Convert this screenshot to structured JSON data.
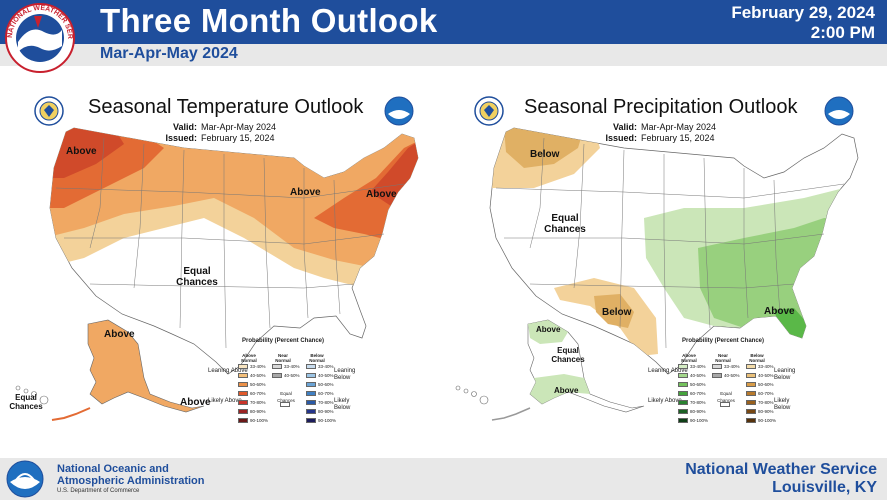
{
  "header": {
    "title": "Three Month Outlook",
    "date": "February 29, 2024",
    "time": "2:00 PM",
    "subtitle": "Mar-Apr-May 2024",
    "seal_text": "NATIONAL WEATHER SERVICE"
  },
  "temperature": {
    "title": "Seasonal Temperature Outlook",
    "valid_label": "Valid:",
    "valid_value": "Mar-Apr-May 2024",
    "issued_label": "Issued:",
    "issued_value": "February 15, 2024",
    "labels": {
      "above_nw": "Above",
      "above_greatlakes": "Above",
      "above_ne": "Above",
      "equal_chances": "Equal Chances",
      "above_alaska": "Above",
      "above_aleutians": "Above",
      "equal_chances_hawaii": "Equal Chances"
    }
  },
  "precipitation": {
    "title": "Seasonal Precipitation Outlook",
    "valid_label": "Valid:",
    "valid_value": "Mar-Apr-May 2024",
    "issued_label": "Issued:",
    "issued_value": "February 15, 2024",
    "labels": {
      "below_nw": "Below",
      "equal_chances_west": "Equal Chances",
      "below_south": "Below",
      "above_se": "Above",
      "above_alaska_n": "Above",
      "equal_chances_alaska": "Equal Chances",
      "above_alaska_s": "Above"
    }
  },
  "legend_temp": {
    "title": "Probability (Percent Chance)",
    "col_above": "Above Normal",
    "col_near": "Near Normal",
    "col_below": "Below Normal",
    "leaning_above": "Leaning Above",
    "likely_above": "Likely Above",
    "leaning_below": "Leaning Below",
    "likely_below": "Likely Below",
    "equal_chances": "Equal Chances",
    "rows": [
      "33-40%",
      "40-50%",
      "50-60%",
      "60-70%",
      "70-80%",
      "80-90%",
      "90-100%"
    ],
    "near_rows": [
      "33-40%",
      "40-50%"
    ],
    "colors_above": [
      "#f7e4c0",
      "#f3bf7a",
      "#ec9148",
      "#e1592b",
      "#c9342a",
      "#9c2424",
      "#6b1818"
    ],
    "colors_near": [
      "#d8d8d8",
      "#a8a8a8"
    ],
    "colors_below": [
      "#c8dcee",
      "#9cc4e4",
      "#6ba4d6",
      "#3f7fc2",
      "#2b5aa6",
      "#25358a",
      "#1c1c5c"
    ]
  },
  "legend_precip": {
    "title": "Probability (Percent Chance)",
    "col_above": "Above Normal",
    "col_near": "Near Normal",
    "col_below": "Below Normal",
    "leaning_above": "Leaning Above",
    "likely_above": "Likely Above",
    "leaning_below": "Leaning Below",
    "likely_below": "Likely Below",
    "equal_chances": "Equal Chances",
    "rows": [
      "33-40%",
      "40-50%",
      "50-60%",
      "60-70%",
      "70-80%",
      "80-90%",
      "90-100%"
    ],
    "near_rows": [
      "33-40%",
      "40-50%"
    ],
    "colors_above": [
      "#d4ecc4",
      "#a4d88c",
      "#74c25c",
      "#44a43c",
      "#2a8230",
      "#1c6024",
      "#0e3e16"
    ],
    "colors_near": [
      "#d8d8d8",
      "#a8a8a8"
    ],
    "colors_below": [
      "#f3dcaa",
      "#e9c07a",
      "#d89c48",
      "#b87a2c",
      "#98601e",
      "#784814",
      "#56320c"
    ]
  },
  "footer": {
    "noaa_line1": "National Oceanic and",
    "noaa_line2": "Atmospheric Administration",
    "noaa_dept": "U.S. Department of Commerce",
    "office_line1": "National Weather Service",
    "office_line2": "Louisville, KY"
  },
  "colors": {
    "brand_blue": "#1f4e9c",
    "header_gray": "#e8e8e8"
  }
}
